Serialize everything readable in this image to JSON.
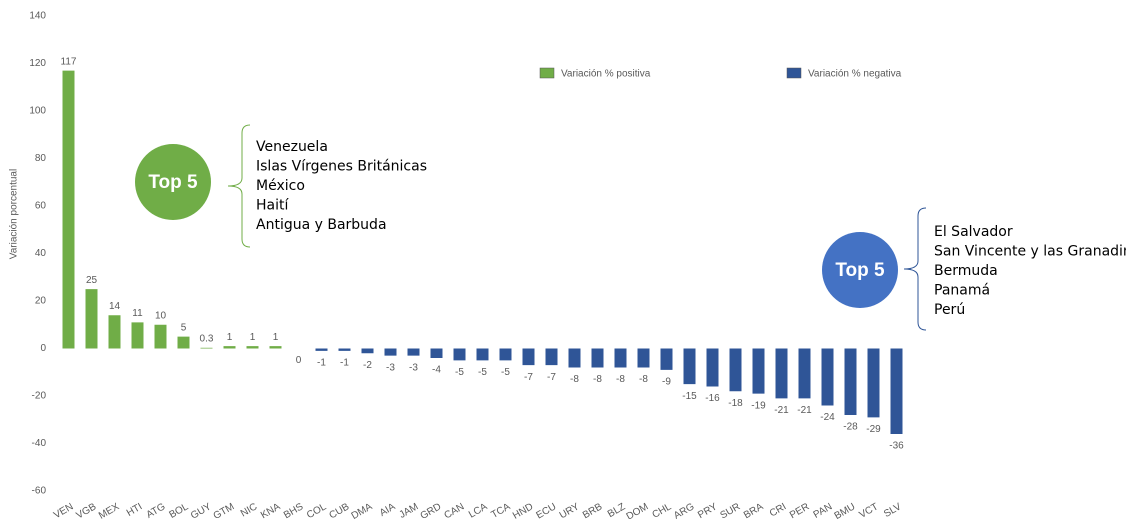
{
  "chart_data": {
    "type": "bar",
    "y_label": "Variación porcentual",
    "categories": [
      "VEN",
      "VGB",
      "MEX",
      "HTI",
      "ATG",
      "BOL",
      "GUY",
      "GTM",
      "NIC",
      "KNA",
      "BHS",
      "COL",
      "CUB",
      "DMA",
      "AIA",
      "JAM",
      "GRD",
      "CAN",
      "LCA",
      "TCA",
      "HND",
      "ECU",
      "URY",
      "BRB",
      "BLZ",
      "DOM",
      "CHL",
      "ARG",
      "PRY",
      "SUR",
      "BRA",
      "CRI",
      "PER",
      "PAN",
      "BMU",
      "VCT",
      "SLV"
    ],
    "values": [
      117,
      25,
      14,
      11,
      10,
      5,
      0.3,
      1,
      1,
      1,
      0,
      -1,
      -1,
      -2,
      -3,
      -3,
      -4,
      -5,
      -5,
      -5,
      -7,
      -7,
      -8,
      -8,
      -8,
      -8,
      -9,
      -15,
      -16,
      -18,
      -19,
      -21,
      -21,
      -24,
      -28,
      -29,
      -36
    ],
    "legend": [
      {
        "name": "Variación % positiva",
        "color": "#70ad47"
      },
      {
        "name": "Variación % negativa",
        "color": "#2f5597"
      }
    ],
    "ylim": [
      -60,
      140
    ],
    "yticks": [
      -60,
      -40,
      -20,
      0,
      20,
      40,
      60,
      80,
      100,
      120,
      140
    ],
    "grid": false,
    "annotations": [
      {
        "label": "Top 5",
        "color": "#70ad47",
        "items": [
          "Venezuela",
          "Islas Vírgenes Británicas",
          "México",
          "Haití",
          "Antigua y Barbuda"
        ]
      },
      {
        "label": "Top 5",
        "color": "#4472c4",
        "items": [
          "El Salvador",
          "San Vincente y las Granadinas",
          "Bermuda",
          "Panamá",
          "Perú"
        ]
      }
    ]
  }
}
